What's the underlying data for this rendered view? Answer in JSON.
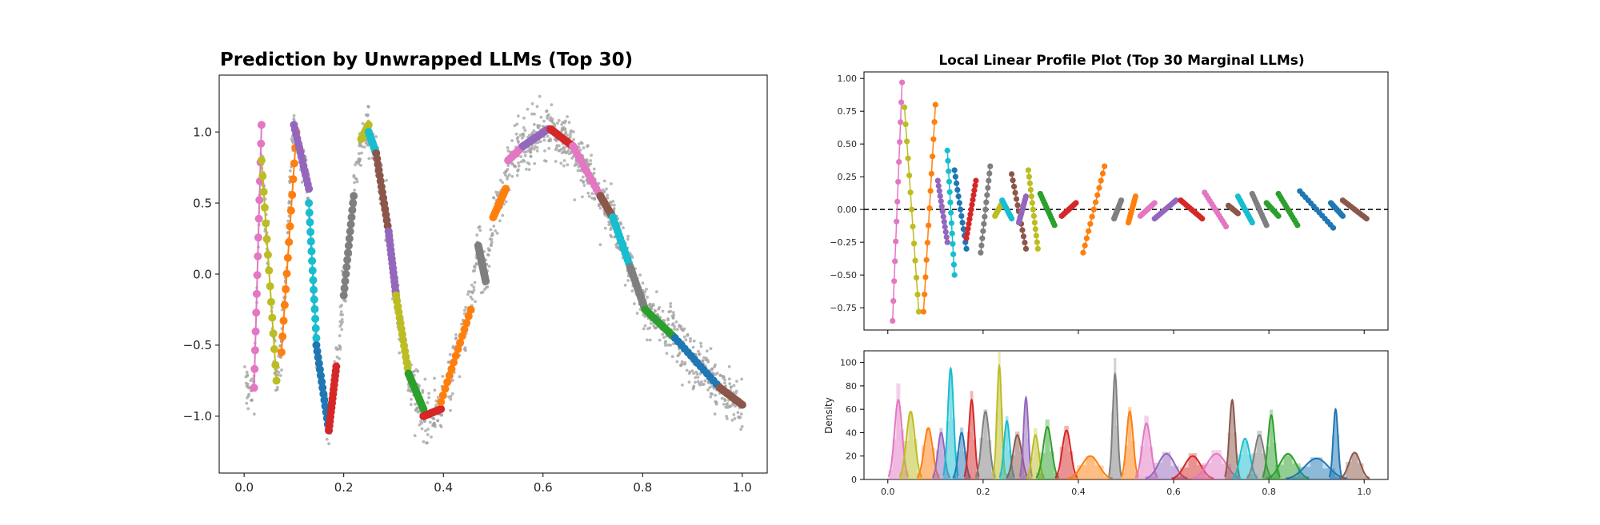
{
  "chart_data": [
    {
      "type": "scatter",
      "title": "Prediction by Unwrapped LLMs (Top 30)",
      "xlabel": "",
      "ylabel": "",
      "xlim": [
        -0.05,
        1.05
      ],
      "ylim": [
        -1.4,
        1.4
      ],
      "xticks": [
        0.0,
        0.2,
        0.4,
        0.6,
        0.8,
        1.0
      ],
      "xtick_labels": [
        "0.0",
        "0.2",
        "0.4",
        "0.6",
        "0.8",
        "1.0"
      ],
      "yticks": [
        -1.0,
        -0.5,
        0.0,
        0.5,
        1.0
      ],
      "ytick_labels": [
        "−1.0",
        "−0.5",
        "0.0",
        "0.5",
        "1.0"
      ],
      "scatter_color": "#a0a0a0",
      "segments": [
        {
          "color": "#e377c2",
          "x": [
            0.02,
            0.035
          ],
          "y": [
            -0.8,
            1.05
          ]
        },
        {
          "color": "#bcbd22",
          "x": [
            0.035,
            0.065
          ],
          "y": [
            0.8,
            -0.75
          ]
        },
        {
          "color": "#ff7f0e",
          "x": [
            0.075,
            0.105
          ],
          "y": [
            -0.55,
            1.0
          ]
        },
        {
          "color": "#9467bd",
          "x": [
            0.1,
            0.13
          ],
          "y": [
            1.05,
            0.6
          ]
        },
        {
          "color": "#17becf",
          "x": [
            0.13,
            0.145
          ],
          "y": [
            0.5,
            -0.45
          ]
        },
        {
          "color": "#1f77b4",
          "x": [
            0.145,
            0.17
          ],
          "y": [
            -0.5,
            -1.1
          ]
        },
        {
          "color": "#d62728",
          "x": [
            0.17,
            0.185
          ],
          "y": [
            -1.1,
            -0.65
          ]
        },
        {
          "color": "#7f7f7f",
          "x": [
            0.2,
            0.22
          ],
          "y": [
            -0.15,
            0.55
          ]
        },
        {
          "color": "#bcbd22",
          "x": [
            0.235,
            0.25
          ],
          "y": [
            0.95,
            1.05
          ]
        },
        {
          "color": "#17becf",
          "x": [
            0.25,
            0.265
          ],
          "y": [
            1.0,
            0.85
          ]
        },
        {
          "color": "#8c564b",
          "x": [
            0.265,
            0.29
          ],
          "y": [
            0.85,
            0.3
          ]
        },
        {
          "color": "#9467bd",
          "x": [
            0.29,
            0.305
          ],
          "y": [
            0.3,
            -0.15
          ]
        },
        {
          "color": "#bcbd22",
          "x": [
            0.305,
            0.33
          ],
          "y": [
            -0.15,
            -0.7
          ]
        },
        {
          "color": "#2ca02c",
          "x": [
            0.33,
            0.36
          ],
          "y": [
            -0.7,
            -0.95
          ]
        },
        {
          "color": "#d62728",
          "x": [
            0.36,
            0.395
          ],
          "y": [
            -1.0,
            -0.95
          ]
        },
        {
          "color": "#ff7f0e",
          "x": [
            0.395,
            0.455
          ],
          "y": [
            -0.9,
            -0.25
          ]
        },
        {
          "color": "#7f7f7f",
          "x": [
            0.47,
            0.485
          ],
          "y": [
            0.2,
            -0.05
          ]
        },
        {
          "color": "#ff7f0e",
          "x": [
            0.5,
            0.525
          ],
          "y": [
            0.4,
            0.6
          ]
        },
        {
          "color": "#e377c2",
          "x": [
            0.53,
            0.56
          ],
          "y": [
            0.8,
            0.9
          ]
        },
        {
          "color": "#9467bd",
          "x": [
            0.56,
            0.61
          ],
          "y": [
            0.9,
            1.02
          ]
        },
        {
          "color": "#d62728",
          "x": [
            0.615,
            0.66
          ],
          "y": [
            1.02,
            0.9
          ]
        },
        {
          "color": "#e377c2",
          "x": [
            0.66,
            0.715
          ],
          "y": [
            0.9,
            0.55
          ]
        },
        {
          "color": "#8c564b",
          "x": [
            0.715,
            0.74
          ],
          "y": [
            0.55,
            0.4
          ]
        },
        {
          "color": "#17becf",
          "x": [
            0.74,
            0.775
          ],
          "y": [
            0.4,
            0.05
          ]
        },
        {
          "color": "#7f7f7f",
          "x": [
            0.775,
            0.805
          ],
          "y": [
            0.05,
            -0.25
          ]
        },
        {
          "color": "#2ca02c",
          "x": [
            0.805,
            0.865
          ],
          "y": [
            -0.25,
            -0.45
          ]
        },
        {
          "color": "#1f77b4",
          "x": [
            0.865,
            0.955
          ],
          "y": [
            -0.45,
            -0.8
          ]
        },
        {
          "color": "#8c564b",
          "x": [
            0.955,
            1.0
          ],
          "y": [
            -0.8,
            -0.92
          ]
        }
      ]
    },
    {
      "type": "line",
      "title": "Local Linear Profile Plot (Top 30 Marginal LLMs)",
      "xlabel": "",
      "ylabel": "",
      "xlim": [
        -0.05,
        1.05
      ],
      "ylim": [
        -0.92,
        1.05
      ],
      "xticks": [
        0.0,
        0.2,
        0.4,
        0.6,
        0.8,
        1.0
      ],
      "xtick_labels": [
        "",
        "",
        "",
        "",
        "",
        ""
      ],
      "yticks": [
        -0.75,
        -0.5,
        -0.25,
        0.0,
        0.25,
        0.5,
        0.75,
        1.0
      ],
      "ytick_labels": [
        "−0.75",
        "−0.50",
        "−0.25",
        "0.00",
        "0.25",
        "0.50",
        "0.75",
        "1.00"
      ],
      "reference_line": 0.0,
      "segments": [
        {
          "color": "#e377c2",
          "x": [
            0.01,
            0.03
          ],
          "y": [
            -0.85,
            0.97
          ]
        },
        {
          "color": "#bcbd22",
          "x": [
            0.035,
            0.065
          ],
          "y": [
            0.78,
            -0.78
          ]
        },
        {
          "color": "#ff7f0e",
          "x": [
            0.075,
            0.1
          ],
          "y": [
            -0.78,
            0.8
          ]
        },
        {
          "color": "#9467bd",
          "x": [
            0.105,
            0.125
          ],
          "y": [
            0.22,
            -0.25
          ]
        },
        {
          "color": "#17becf",
          "x": [
            0.125,
            0.14
          ],
          "y": [
            0.45,
            -0.5
          ]
        },
        {
          "color": "#1f77b4",
          "x": [
            0.14,
            0.165
          ],
          "y": [
            0.3,
            -0.3
          ]
        },
        {
          "color": "#d62728",
          "x": [
            0.165,
            0.185
          ],
          "y": [
            -0.22,
            0.22
          ]
        },
        {
          "color": "#7f7f7f",
          "x": [
            0.195,
            0.215
          ],
          "y": [
            -0.33,
            0.33
          ]
        },
        {
          "color": "#bcbd22",
          "x": [
            0.225,
            0.24
          ],
          "y": [
            -0.05,
            0.05
          ]
        },
        {
          "color": "#17becf",
          "x": [
            0.24,
            0.26
          ],
          "y": [
            0.07,
            -0.07
          ]
        },
        {
          "color": "#8c564b",
          "x": [
            0.26,
            0.29
          ],
          "y": [
            0.27,
            -0.3
          ]
        },
        {
          "color": "#9467bd",
          "x": [
            0.275,
            0.29
          ],
          "y": [
            -0.1,
            0.1
          ]
        },
        {
          "color": "#bcbd22",
          "x": [
            0.295,
            0.315
          ],
          "y": [
            0.3,
            -0.3
          ]
        },
        {
          "color": "#2ca02c",
          "x": [
            0.32,
            0.35
          ],
          "y": [
            0.12,
            -0.12
          ]
        },
        {
          "color": "#d62728",
          "x": [
            0.365,
            0.395
          ],
          "y": [
            -0.05,
            0.05
          ]
        },
        {
          "color": "#ff7f0e",
          "x": [
            0.41,
            0.455
          ],
          "y": [
            -0.33,
            0.33
          ]
        },
        {
          "color": "#7f7f7f",
          "x": [
            0.475,
            0.49
          ],
          "y": [
            -0.07,
            0.07
          ]
        },
        {
          "color": "#ff7f0e",
          "x": [
            0.505,
            0.52
          ],
          "y": [
            -0.1,
            0.1
          ]
        },
        {
          "color": "#e377c2",
          "x": [
            0.53,
            0.56
          ],
          "y": [
            -0.05,
            0.05
          ]
        },
        {
          "color": "#9467bd",
          "x": [
            0.56,
            0.605
          ],
          "y": [
            -0.07,
            0.07
          ]
        },
        {
          "color": "#d62728",
          "x": [
            0.615,
            0.66
          ],
          "y": [
            0.07,
            -0.07
          ]
        },
        {
          "color": "#e377c2",
          "x": [
            0.665,
            0.71
          ],
          "y": [
            0.13,
            -0.13
          ]
        },
        {
          "color": "#8c564b",
          "x": [
            0.715,
            0.735
          ],
          "y": [
            0.03,
            -0.03
          ]
        },
        {
          "color": "#17becf",
          "x": [
            0.735,
            0.765
          ],
          "y": [
            0.1,
            -0.1
          ]
        },
        {
          "color": "#7f7f7f",
          "x": [
            0.765,
            0.795
          ],
          "y": [
            0.12,
            -0.12
          ]
        },
        {
          "color": "#2ca02c",
          "x": [
            0.795,
            0.82
          ],
          "y": [
            0.05,
            -0.05
          ]
        },
        {
          "color": "#2ca02c",
          "x": [
            0.82,
            0.86
          ],
          "y": [
            0.12,
            -0.12
          ]
        },
        {
          "color": "#1f77b4",
          "x": [
            0.865,
            0.935
          ],
          "y": [
            0.14,
            -0.14
          ]
        },
        {
          "color": "#1f77b4",
          "x": [
            0.93,
            0.955
          ],
          "y": [
            0.05,
            -0.05
          ]
        },
        {
          "color": "#8c564b",
          "x": [
            0.955,
            1.005
          ],
          "y": [
            0.07,
            -0.07
          ]
        }
      ]
    },
    {
      "type": "area",
      "title": "",
      "xlabel": "",
      "ylabel": "Density",
      "xlim": [
        -0.05,
        1.05
      ],
      "ylim": [
        0,
        110
      ],
      "xticks": [
        0.0,
        0.2,
        0.4,
        0.6,
        0.8,
        1.0
      ],
      "xtick_labels": [
        "0.0",
        "0.2",
        "0.4",
        "0.6",
        "0.8",
        "1.0"
      ],
      "yticks": [
        0,
        20,
        40,
        60,
        80,
        100
      ],
      "ytick_labels": [
        "0",
        "20",
        "40",
        "60",
        "80",
        "100"
      ],
      "densities": [
        {
          "color": "#e377c2",
          "center": 0.022,
          "width": 0.008,
          "peak": 68
        },
        {
          "color": "#bcbd22",
          "center": 0.048,
          "width": 0.009,
          "peak": 58
        },
        {
          "color": "#ff7f0e",
          "center": 0.085,
          "width": 0.009,
          "peak": 44
        },
        {
          "color": "#9467bd",
          "center": 0.112,
          "width": 0.007,
          "peak": 40
        },
        {
          "color": "#17becf",
          "center": 0.132,
          "width": 0.006,
          "peak": 95
        },
        {
          "color": "#1f77b4",
          "center": 0.155,
          "width": 0.007,
          "peak": 40
        },
        {
          "color": "#d62728",
          "center": 0.176,
          "width": 0.006,
          "peak": 68
        },
        {
          "color": "#7f7f7f",
          "center": 0.205,
          "width": 0.008,
          "peak": 58
        },
        {
          "color": "#bcbd22",
          "center": 0.234,
          "width": 0.005,
          "peak": 97
        },
        {
          "color": "#17becf",
          "center": 0.25,
          "width": 0.006,
          "peak": 50
        },
        {
          "color": "#8c564b",
          "center": 0.272,
          "width": 0.009,
          "peak": 38
        },
        {
          "color": "#9467bd",
          "center": 0.29,
          "width": 0.005,
          "peak": 70
        },
        {
          "color": "#bcbd22",
          "center": 0.31,
          "width": 0.007,
          "peak": 38
        },
        {
          "color": "#2ca02c",
          "center": 0.335,
          "width": 0.009,
          "peak": 45
        },
        {
          "color": "#d62728",
          "center": 0.375,
          "width": 0.009,
          "peak": 42
        },
        {
          "color": "#ff7f0e",
          "center": 0.425,
          "width": 0.018,
          "peak": 20
        },
        {
          "color": "#7f7f7f",
          "center": 0.477,
          "width": 0.005,
          "peak": 90
        },
        {
          "color": "#ff7f0e",
          "center": 0.508,
          "width": 0.007,
          "peak": 58
        },
        {
          "color": "#e377c2",
          "center": 0.543,
          "width": 0.009,
          "peak": 48
        },
        {
          "color": "#9467bd",
          "center": 0.585,
          "width": 0.017,
          "peak": 22
        },
        {
          "color": "#d62728",
          "center": 0.64,
          "width": 0.017,
          "peak": 20
        },
        {
          "color": "#e377c2",
          "center": 0.69,
          "width": 0.02,
          "peak": 22
        },
        {
          "color": "#8c564b",
          "center": 0.723,
          "width": 0.006,
          "peak": 68
        },
        {
          "color": "#17becf",
          "center": 0.75,
          "width": 0.01,
          "peak": 35
        },
        {
          "color": "#7f7f7f",
          "center": 0.78,
          "width": 0.01,
          "peak": 38
        },
        {
          "color": "#2ca02c",
          "center": 0.805,
          "width": 0.007,
          "peak": 55
        },
        {
          "color": "#2ca02c",
          "center": 0.84,
          "width": 0.017,
          "peak": 22
        },
        {
          "color": "#1f77b4",
          "center": 0.9,
          "width": 0.025,
          "peak": 18
        },
        {
          "color": "#1f77b4",
          "center": 0.94,
          "width": 0.005,
          "peak": 60
        },
        {
          "color": "#8c564b",
          "center": 0.98,
          "width": 0.012,
          "peak": 23
        }
      ]
    }
  ]
}
